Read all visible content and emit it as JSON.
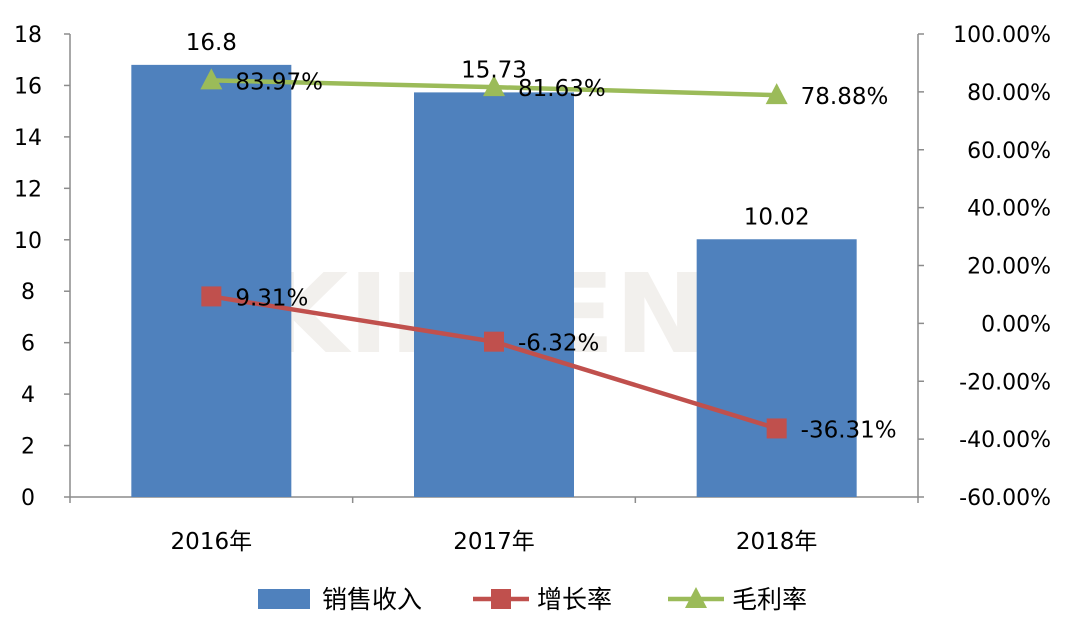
{
  "chart_data": {
    "type": "bar",
    "categories": [
      "2016年",
      "2017年",
      "2018年"
    ],
    "series": [
      {
        "name": "销售收入",
        "type": "bar",
        "axis": "left",
        "values": [
          16.8,
          15.73,
          10.02
        ],
        "labels": [
          "16.8",
          "15.73",
          "10.02"
        ],
        "color": "#4f81bd"
      },
      {
        "name": "增长率",
        "type": "line",
        "axis": "right",
        "marker": "square",
        "values": [
          9.31,
          -6.32,
          -36.31
        ],
        "labels": [
          "9.31%",
          "-6.32%",
          "-36.31%"
        ],
        "color": "#c0504d"
      },
      {
        "name": "毛利率",
        "type": "line",
        "axis": "right",
        "marker": "triangle",
        "values": [
          83.97,
          81.63,
          78.88
        ],
        "labels": [
          "83.97%",
          "81.63%",
          "78.88%"
        ],
        "color": "#9bbb59"
      }
    ],
    "y_left": {
      "ylim": [
        0,
        18
      ],
      "ticks": [
        "0",
        "2",
        "4",
        "6",
        "8",
        "10",
        "12",
        "14",
        "16",
        "18"
      ]
    },
    "y_right": {
      "ylim": [
        -60,
        100
      ],
      "ticks": [
        "-60.00%",
        "-40.00%",
        "-20.00%",
        "0.00%",
        "20.00%",
        "40.00%",
        "60.00%",
        "80.00%",
        "100.00%"
      ]
    },
    "grid": false,
    "legend_position": "bottom",
    "watermark": "KIIMENET"
  }
}
